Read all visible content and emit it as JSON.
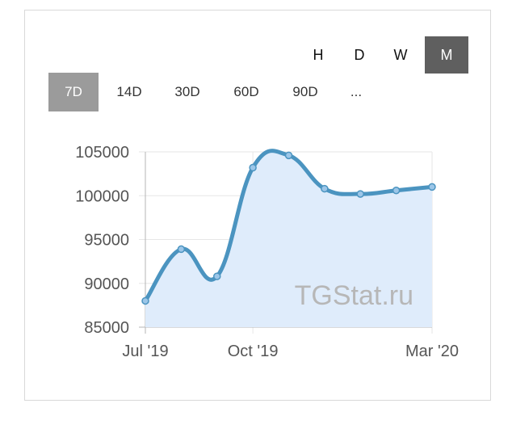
{
  "scale_tabs": [
    {
      "label": "H",
      "active": false
    },
    {
      "label": "D",
      "active": false
    },
    {
      "label": "W",
      "active": false
    },
    {
      "label": "M",
      "active": true
    }
  ],
  "range_tabs": [
    {
      "label": "7D",
      "active": true
    },
    {
      "label": "14D",
      "active": false
    },
    {
      "label": "30D",
      "active": false
    },
    {
      "label": "60D",
      "active": false
    },
    {
      "label": "90D",
      "active": false
    },
    {
      "label": "...",
      "active": false
    }
  ],
  "watermark": "TGStat.ru",
  "colors": {
    "line": "#4b94c0",
    "fill": "#dfecfb",
    "point": "#9cc6e8",
    "grid": "#e6e6e6",
    "axis": "#b5b5b5"
  },
  "chart_data": {
    "type": "area",
    "x": [
      "2019-07",
      "2019-08",
      "2019-09",
      "2019-10",
      "2019-11",
      "2019-12",
      "2020-01",
      "2020-02",
      "2020-03"
    ],
    "series": [
      {
        "values": [
          88000,
          93900,
          90800,
          103200,
          104600,
          100800,
          100200,
          100600,
          101000
        ]
      }
    ],
    "x_tick_labels": [
      "Jul '19",
      "Oct '19",
      "Mar '20"
    ],
    "y_ticks": [
      85000,
      90000,
      95000,
      100000,
      105000
    ],
    "ylim": [
      85000,
      105000
    ],
    "grid": true,
    "legend": "none",
    "title": "",
    "xlabel": "",
    "ylabel": ""
  }
}
